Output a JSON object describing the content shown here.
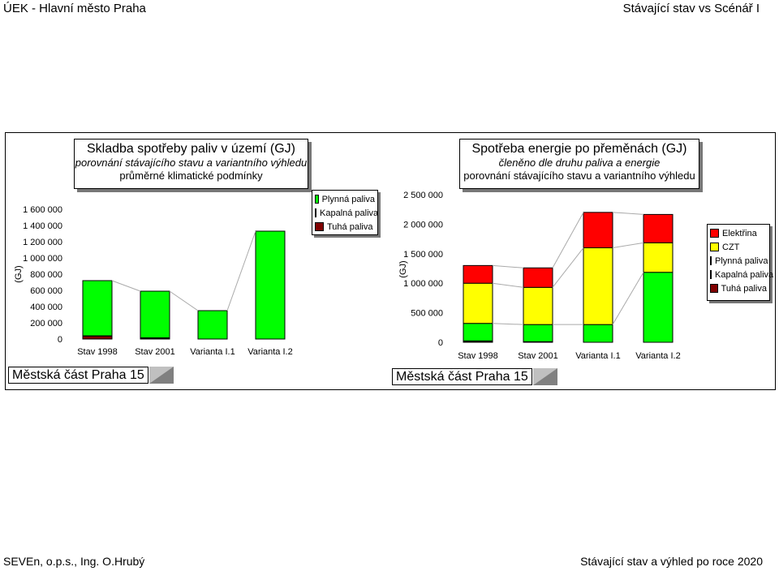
{
  "header": {
    "left": "ÚEK - Hlavní město Praha",
    "right": "Stávající stav vs Scénář I"
  },
  "footer": {
    "left": "SEVEn, o.p.s., Ing. O.Hrubý",
    "right": "Stávající stav a výhled po roce 2020"
  },
  "colors": {
    "Plynná paliva": "#00ff00",
    "Kapalná paliva": "#3366ff",
    "Tuhá paliva": "#800000",
    "Elektřina": "#ff0000",
    "CZT": "#ffff00"
  },
  "chart_data": [
    {
      "type": "bar",
      "stacked": true,
      "title": "Skladba spotřeby paliv v území (GJ)",
      "subtitle": [
        "porovnání stávajícího stavu a variantního výhledu",
        "průměrné klimatické podmínky"
      ],
      "ylabel": "(GJ)",
      "ylim": [
        0,
        1600000
      ],
      "yticks": [
        "0",
        "200 000",
        "400 000",
        "600 000",
        "800 000",
        "1 000 000",
        "1 200 000",
        "1 400 000",
        "1 600 000"
      ],
      "categories": [
        "Stav 1998",
        "Stav 2001",
        "Varianta I.1",
        "Varianta I.2"
      ],
      "area_label": "Městská část Praha 15",
      "legend": [
        "Plynná paliva",
        "Kapalná paliva",
        "Tuhá paliva"
      ],
      "series": [
        {
          "name": "Tuhá paliva",
          "values": [
            35000,
            12000,
            0,
            0
          ]
        },
        {
          "name": "Kapalná paliva",
          "values": [
            5000,
            3000,
            0,
            0
          ]
        },
        {
          "name": "Plynná paliva",
          "values": [
            680000,
            575000,
            350000,
            1330000
          ]
        }
      ]
    },
    {
      "type": "bar",
      "stacked": true,
      "title": "Spotřeba energie po přeměnách (GJ)",
      "subtitle": [
        "členěno dle druhu paliva a energie",
        "porovnání stávajícího stavu a variantního výhledu"
      ],
      "ylabel": "(GJ)",
      "ylim": [
        0,
        2500000
      ],
      "yticks": [
        "0",
        "500 000",
        "1 000 000",
        "1 500 000",
        "2 000 000",
        "2 500 000"
      ],
      "categories": [
        "Stav 1998",
        "Stav 2001",
        "Varianta I.1",
        "Varianta I.2"
      ],
      "area_label": "Městská část Praha 15",
      "legend": [
        "Elektřina",
        "CZT",
        "Plynná paliva",
        "Kapalná paliva",
        "Tuhá paliva"
      ],
      "series": [
        {
          "name": "Tuhá paliva",
          "values": [
            20000,
            8000,
            0,
            0
          ]
        },
        {
          "name": "Kapalná paliva",
          "values": [
            3000,
            2000,
            0,
            0
          ]
        },
        {
          "name": "Plynná paliva",
          "values": [
            297000,
            290000,
            300000,
            1185000
          ]
        },
        {
          "name": "CZT",
          "values": [
            680000,
            630000,
            1300000,
            500000
          ]
        },
        {
          "name": "Elektřina",
          "values": [
            300000,
            330000,
            600000,
            480000
          ]
        }
      ]
    }
  ]
}
